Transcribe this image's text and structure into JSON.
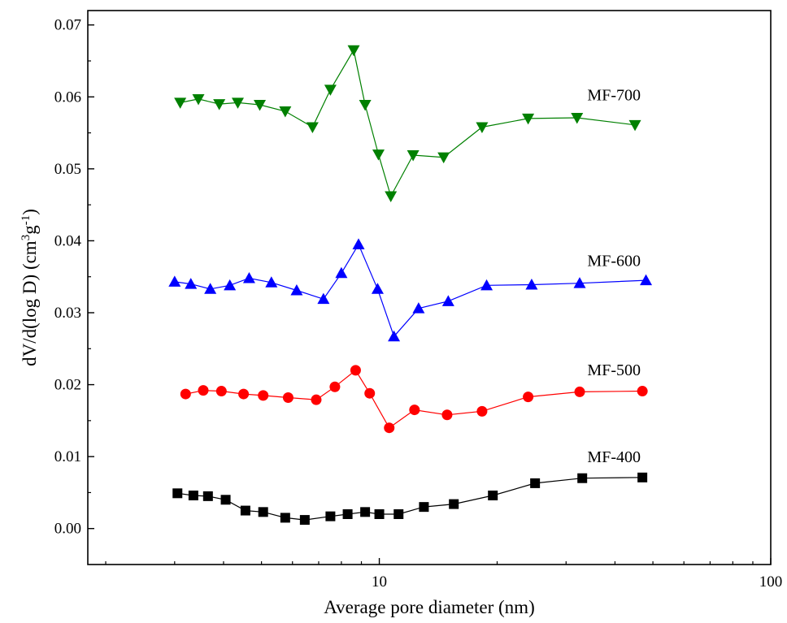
{
  "chart_data": {
    "type": "scatter",
    "title": "",
    "xlabel": "Average pore diameter (nm)",
    "ylabel_parts": [
      "dV/d(log D) (cm",
      "3",
      "g",
      "-1",
      ")"
    ],
    "xscale": "log",
    "xlim": [
      1.8,
      100
    ],
    "ylim": [
      -0.005,
      0.072
    ],
    "xticks": [
      10,
      100
    ],
    "xtick_labels": [
      "10",
      "100"
    ],
    "yticks": [
      0.0,
      0.01,
      0.02,
      0.03,
      0.04,
      0.05,
      0.06,
      0.07
    ],
    "ytick_labels": [
      "0.00",
      "0.01",
      "0.02",
      "0.03",
      "0.04",
      "0.05",
      "0.06",
      "0.07"
    ],
    "grid": false,
    "legend": "none",
    "series": [
      {
        "name": "MF-400",
        "color": "#000000",
        "marker": "square",
        "x": [
          3.05,
          3.35,
          3.65,
          4.05,
          4.55,
          5.05,
          5.75,
          6.45,
          7.5,
          8.3,
          9.2,
          10.0,
          11.2,
          13.0,
          15.5,
          19.5,
          25.0,
          33.0,
          47.0
        ],
        "y": [
          0.0049,
          0.0046,
          0.0045,
          0.004,
          0.0025,
          0.0023,
          0.0015,
          0.0012,
          0.0017,
          0.002,
          0.0023,
          0.002,
          0.002,
          0.003,
          0.0034,
          0.0046,
          0.0063,
          0.007,
          0.0071
        ]
      },
      {
        "name": "MF-500",
        "color": "#ff0000",
        "marker": "circle",
        "x": [
          3.2,
          3.55,
          3.95,
          4.5,
          5.05,
          5.85,
          6.9,
          7.7,
          8.7,
          9.45,
          10.6,
          12.3,
          14.9,
          18.3,
          24.0,
          32.5,
          47.0
        ],
        "y": [
          0.0187,
          0.0192,
          0.0191,
          0.0187,
          0.0185,
          0.0182,
          0.0179,
          0.0197,
          0.022,
          0.0188,
          0.014,
          0.0165,
          0.0158,
          0.0163,
          0.0183,
          0.019,
          0.0191
        ]
      },
      {
        "name": "MF-600",
        "color": "#0000ff",
        "marker": "triangle-up",
        "x": [
          3.0,
          3.3,
          3.7,
          4.15,
          4.65,
          5.3,
          6.15,
          7.2,
          8.0,
          8.85,
          9.9,
          10.9,
          12.6,
          15.0,
          18.8,
          24.5,
          32.5,
          48.0
        ],
        "y": [
          0.0343,
          0.034,
          0.0333,
          0.0338,
          0.0348,
          0.0342,
          0.0331,
          0.0319,
          0.0355,
          0.0395,
          0.0333,
          0.0267,
          0.0306,
          0.0316,
          0.0338,
          0.0339,
          0.0341,
          0.0345
        ]
      },
      {
        "name": "MF-700",
        "color": "#008000",
        "marker": "triangle-down",
        "x": [
          3.1,
          3.45,
          3.9,
          4.35,
          4.95,
          5.75,
          6.75,
          7.5,
          8.6,
          9.2,
          9.95,
          10.7,
          12.2,
          14.6,
          18.3,
          24.0,
          32.0,
          45.0
        ],
        "y": [
          0.0592,
          0.0597,
          0.059,
          0.0592,
          0.0589,
          0.058,
          0.0558,
          0.061,
          0.0665,
          0.0589,
          0.052,
          0.0462,
          0.0519,
          0.0516,
          0.0558,
          0.057,
          0.0571,
          0.0561
        ]
      }
    ],
    "annotations": [
      {
        "text": "MF-700",
        "x": 34.0,
        "y": 0.0595
      },
      {
        "text": "MF-600",
        "x": 34.0,
        "y": 0.0365
      },
      {
        "text": "MF-500",
        "x": 34.0,
        "y": 0.0213
      },
      {
        "text": "MF-400",
        "x": 34.0,
        "y": 0.0092
      }
    ]
  }
}
